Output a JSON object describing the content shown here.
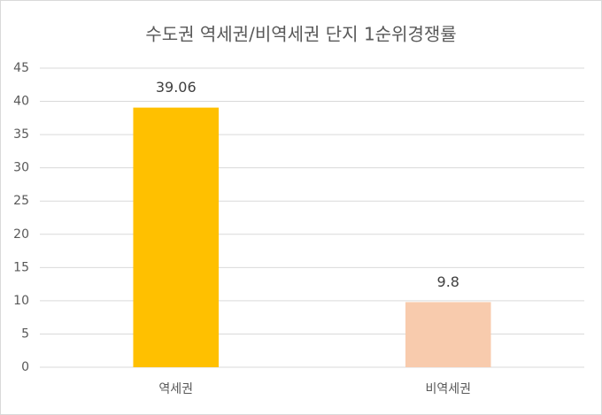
{
  "chart_data": {
    "type": "bar",
    "title": "수도권 역세권/비역세권 단지 1순위경쟁률",
    "categories": [
      "역세권",
      "비역세권"
    ],
    "values": [
      39.06,
      9.8
    ],
    "colors": [
      "#ffc000",
      "#f8cbad"
    ],
    "ylim": [
      0,
      45
    ],
    "yticks": [
      0,
      5,
      10,
      15,
      20,
      25,
      30,
      35,
      40,
      45
    ],
    "grid": true
  }
}
